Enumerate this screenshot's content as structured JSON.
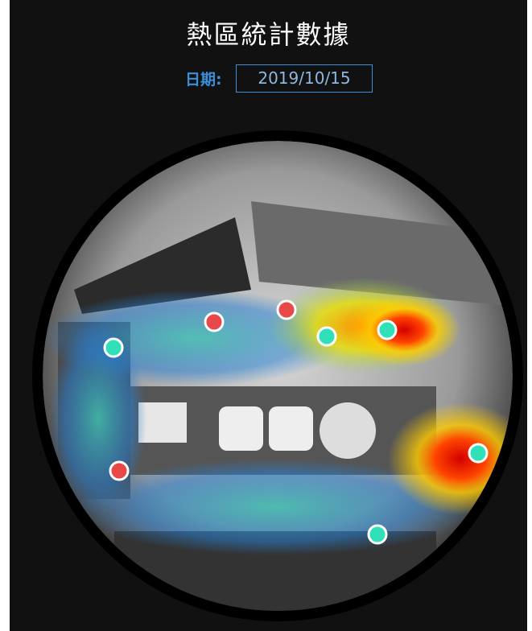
{
  "header": {
    "title": "熱區統計數據",
    "date_label": "日期:",
    "date": "2019/10/15"
  }
}
